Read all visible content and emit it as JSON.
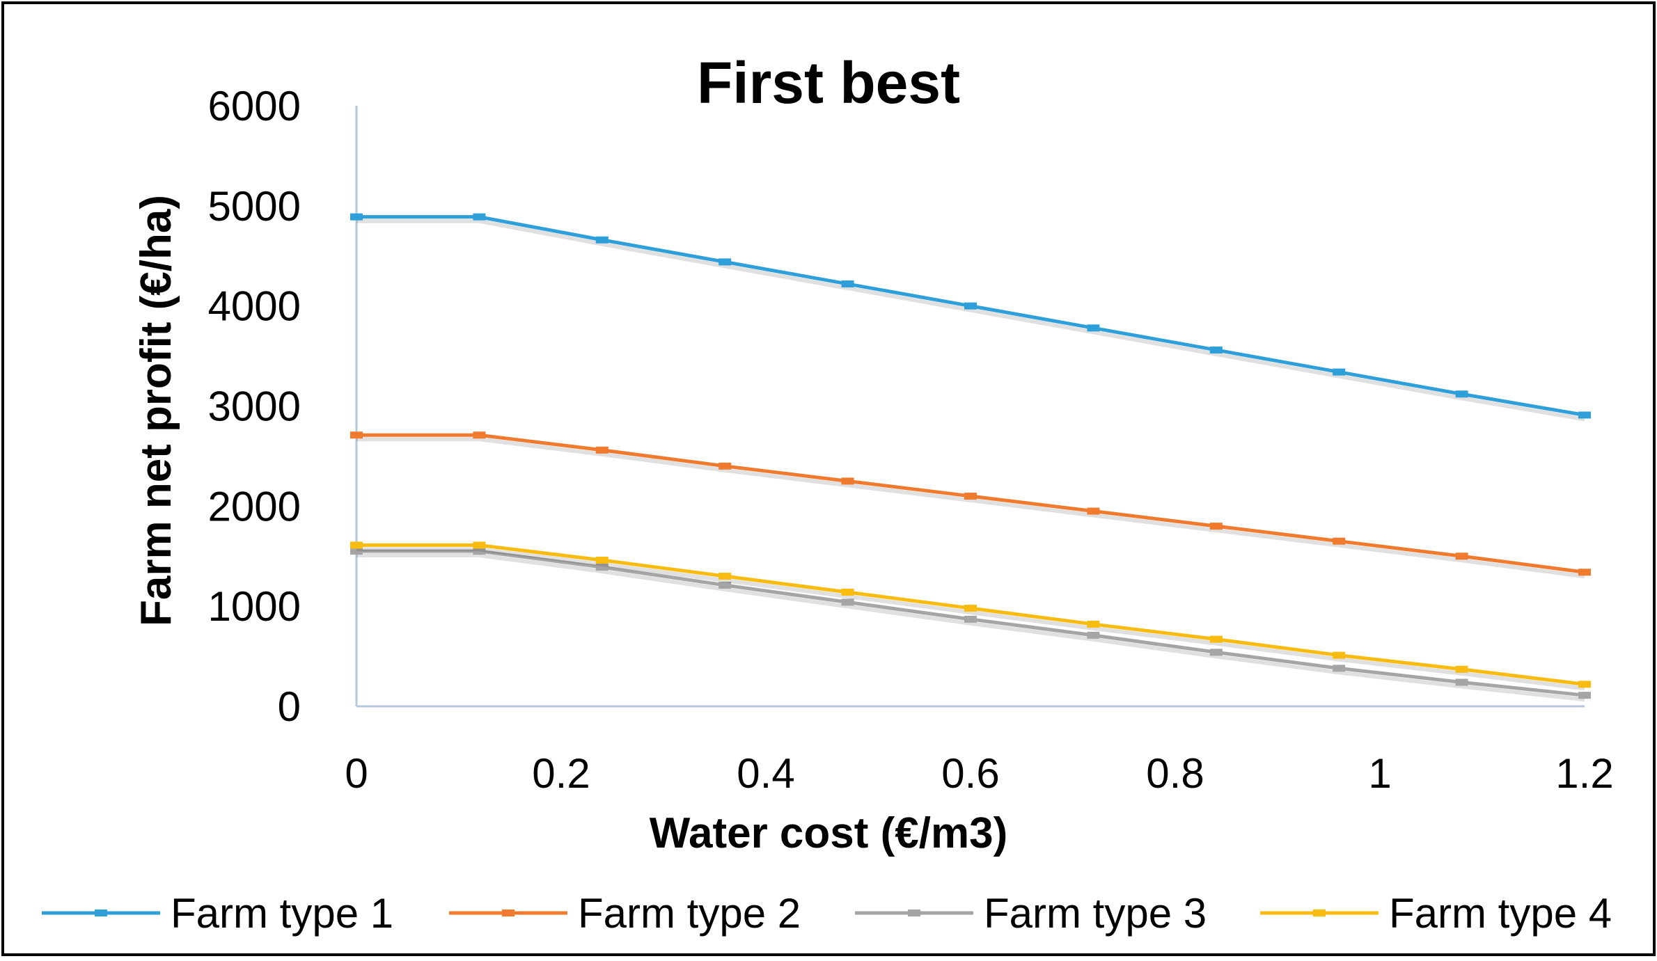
{
  "chart_data": {
    "type": "line",
    "title": "First best",
    "xlabel": "Water cost (€/m3)",
    "ylabel": "Farm net profit (€/ha)",
    "xlim": [
      0,
      1.2
    ],
    "ylim": [
      0,
      6000
    ],
    "x_ticks": [
      0,
      0.2,
      0.4,
      0.6,
      0.8,
      1,
      1.2
    ],
    "x_tick_labels": [
      "0",
      "0.2",
      "0.4",
      "0.6",
      "0.8",
      "1",
      "1.2"
    ],
    "y_ticks": [
      0,
      1000,
      2000,
      3000,
      4000,
      5000,
      6000
    ],
    "y_tick_labels": [
      "0",
      "1000",
      "2000",
      "3000",
      "4000",
      "5000",
      "6000"
    ],
    "grid": false,
    "legend_position": "bottom",
    "x": [
      0,
      0.12,
      0.24,
      0.36,
      0.48,
      0.6,
      0.72,
      0.84,
      0.96,
      1.08,
      1.2
    ],
    "series": [
      {
        "name": "Farm type 1",
        "color": "#2e9fd9",
        "values": [
          4890,
          4890,
          4660,
          4440,
          4220,
          4000,
          3780,
          3560,
          3340,
          3120,
          2910
        ]
      },
      {
        "name": "Farm type 2",
        "color": "#f07a2e",
        "values": [
          2710,
          2710,
          2560,
          2400,
          2250,
          2100,
          1950,
          1800,
          1650,
          1500,
          1340
        ]
      },
      {
        "name": "Farm type 3",
        "color": "#a5a5a5",
        "values": [
          1550,
          1550,
          1390,
          1210,
          1040,
          870,
          710,
          540,
          380,
          240,
          110
        ]
      },
      {
        "name": "Farm type 4",
        "color": "#f8bc10",
        "values": [
          1610,
          1610,
          1460,
          1300,
          1140,
          980,
          820,
          670,
          510,
          370,
          220
        ]
      }
    ]
  }
}
